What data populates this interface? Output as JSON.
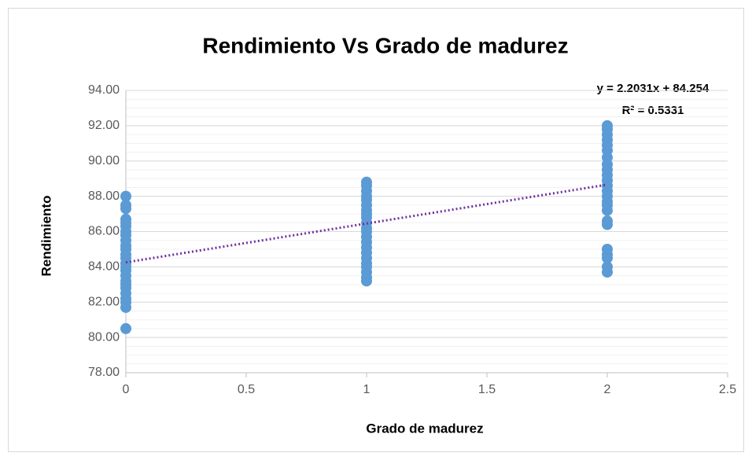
{
  "chart_data": {
    "type": "scatter",
    "title": "Rendimiento Vs Grado de madurez",
    "x_label": "Grado de madurez",
    "y_label": "Rendimiento",
    "annotations": [
      "y = 2.2031x + 84.254",
      "R² = 0.5331"
    ],
    "color": "#5b9bd5",
    "x": [
      0,
      0,
      0,
      0,
      0,
      0,
      0,
      0,
      0,
      0,
      0,
      0,
      0,
      0,
      0,
      0,
      0,
      0,
      0,
      0,
      0,
      0,
      0,
      0,
      0,
      1,
      1,
      1,
      1,
      1,
      1,
      1,
      1,
      1,
      1,
      1,
      1,
      1,
      1,
      1,
      1,
      1,
      1,
      1,
      1,
      1,
      1,
      2,
      2,
      2,
      2,
      2,
      2,
      2,
      2,
      2,
      2,
      2,
      2,
      2,
      2,
      2,
      2,
      2,
      2,
      2,
      2,
      2,
      2,
      2,
      2
    ],
    "y": [
      88.0,
      87.5,
      87.3,
      86.7,
      86.5,
      86.3,
      86.0,
      85.8,
      85.5,
      85.2,
      85.0,
      84.7,
      84.5,
      84.2,
      84.0,
      83.8,
      83.5,
      83.2,
      83.0,
      82.8,
      82.5,
      82.2,
      82.0,
      81.7,
      80.5,
      88.8,
      88.6,
      88.3,
      88.0,
      87.8,
      87.5,
      87.2,
      87.0,
      86.8,
      86.5,
      86.2,
      86.0,
      85.7,
      85.4,
      85.1,
      84.8,
      84.5,
      84.2,
      84.0,
      83.7,
      83.4,
      83.2,
      92.0,
      91.8,
      91.5,
      91.2,
      90.9,
      90.6,
      90.2,
      89.8,
      89.5,
      89.2,
      88.9,
      88.6,
      88.3,
      88.0,
      87.7,
      87.5,
      87.2,
      86.6,
      86.4,
      85.0,
      84.7,
      84.5,
      84.0,
      83.7
    ],
    "trendline": {
      "slope": 2.2031,
      "intercept": 84.254,
      "x": [
        0,
        2
      ],
      "color": "#7030a0"
    },
    "xlim": [
      0,
      2.5
    ],
    "xticks": [
      0,
      0.5,
      1,
      1.5,
      2,
      2.5
    ],
    "ylim": [
      78,
      94
    ],
    "yticks": [
      {
        "value": 78,
        "label": "78.00"
      },
      {
        "value": 80,
        "label": "80.00"
      },
      {
        "value": 82,
        "label": "82.00"
      },
      {
        "value": 84,
        "label": "84.00"
      },
      {
        "value": 86,
        "label": "86.00"
      },
      {
        "value": 88,
        "label": "88.00"
      },
      {
        "value": 90,
        "label": "90.00"
      },
      {
        "value": 92,
        "label": "92.00"
      },
      {
        "value": 94,
        "label": "94.00"
      }
    ],
    "grid": true,
    "y_minor_step": 0.5
  }
}
